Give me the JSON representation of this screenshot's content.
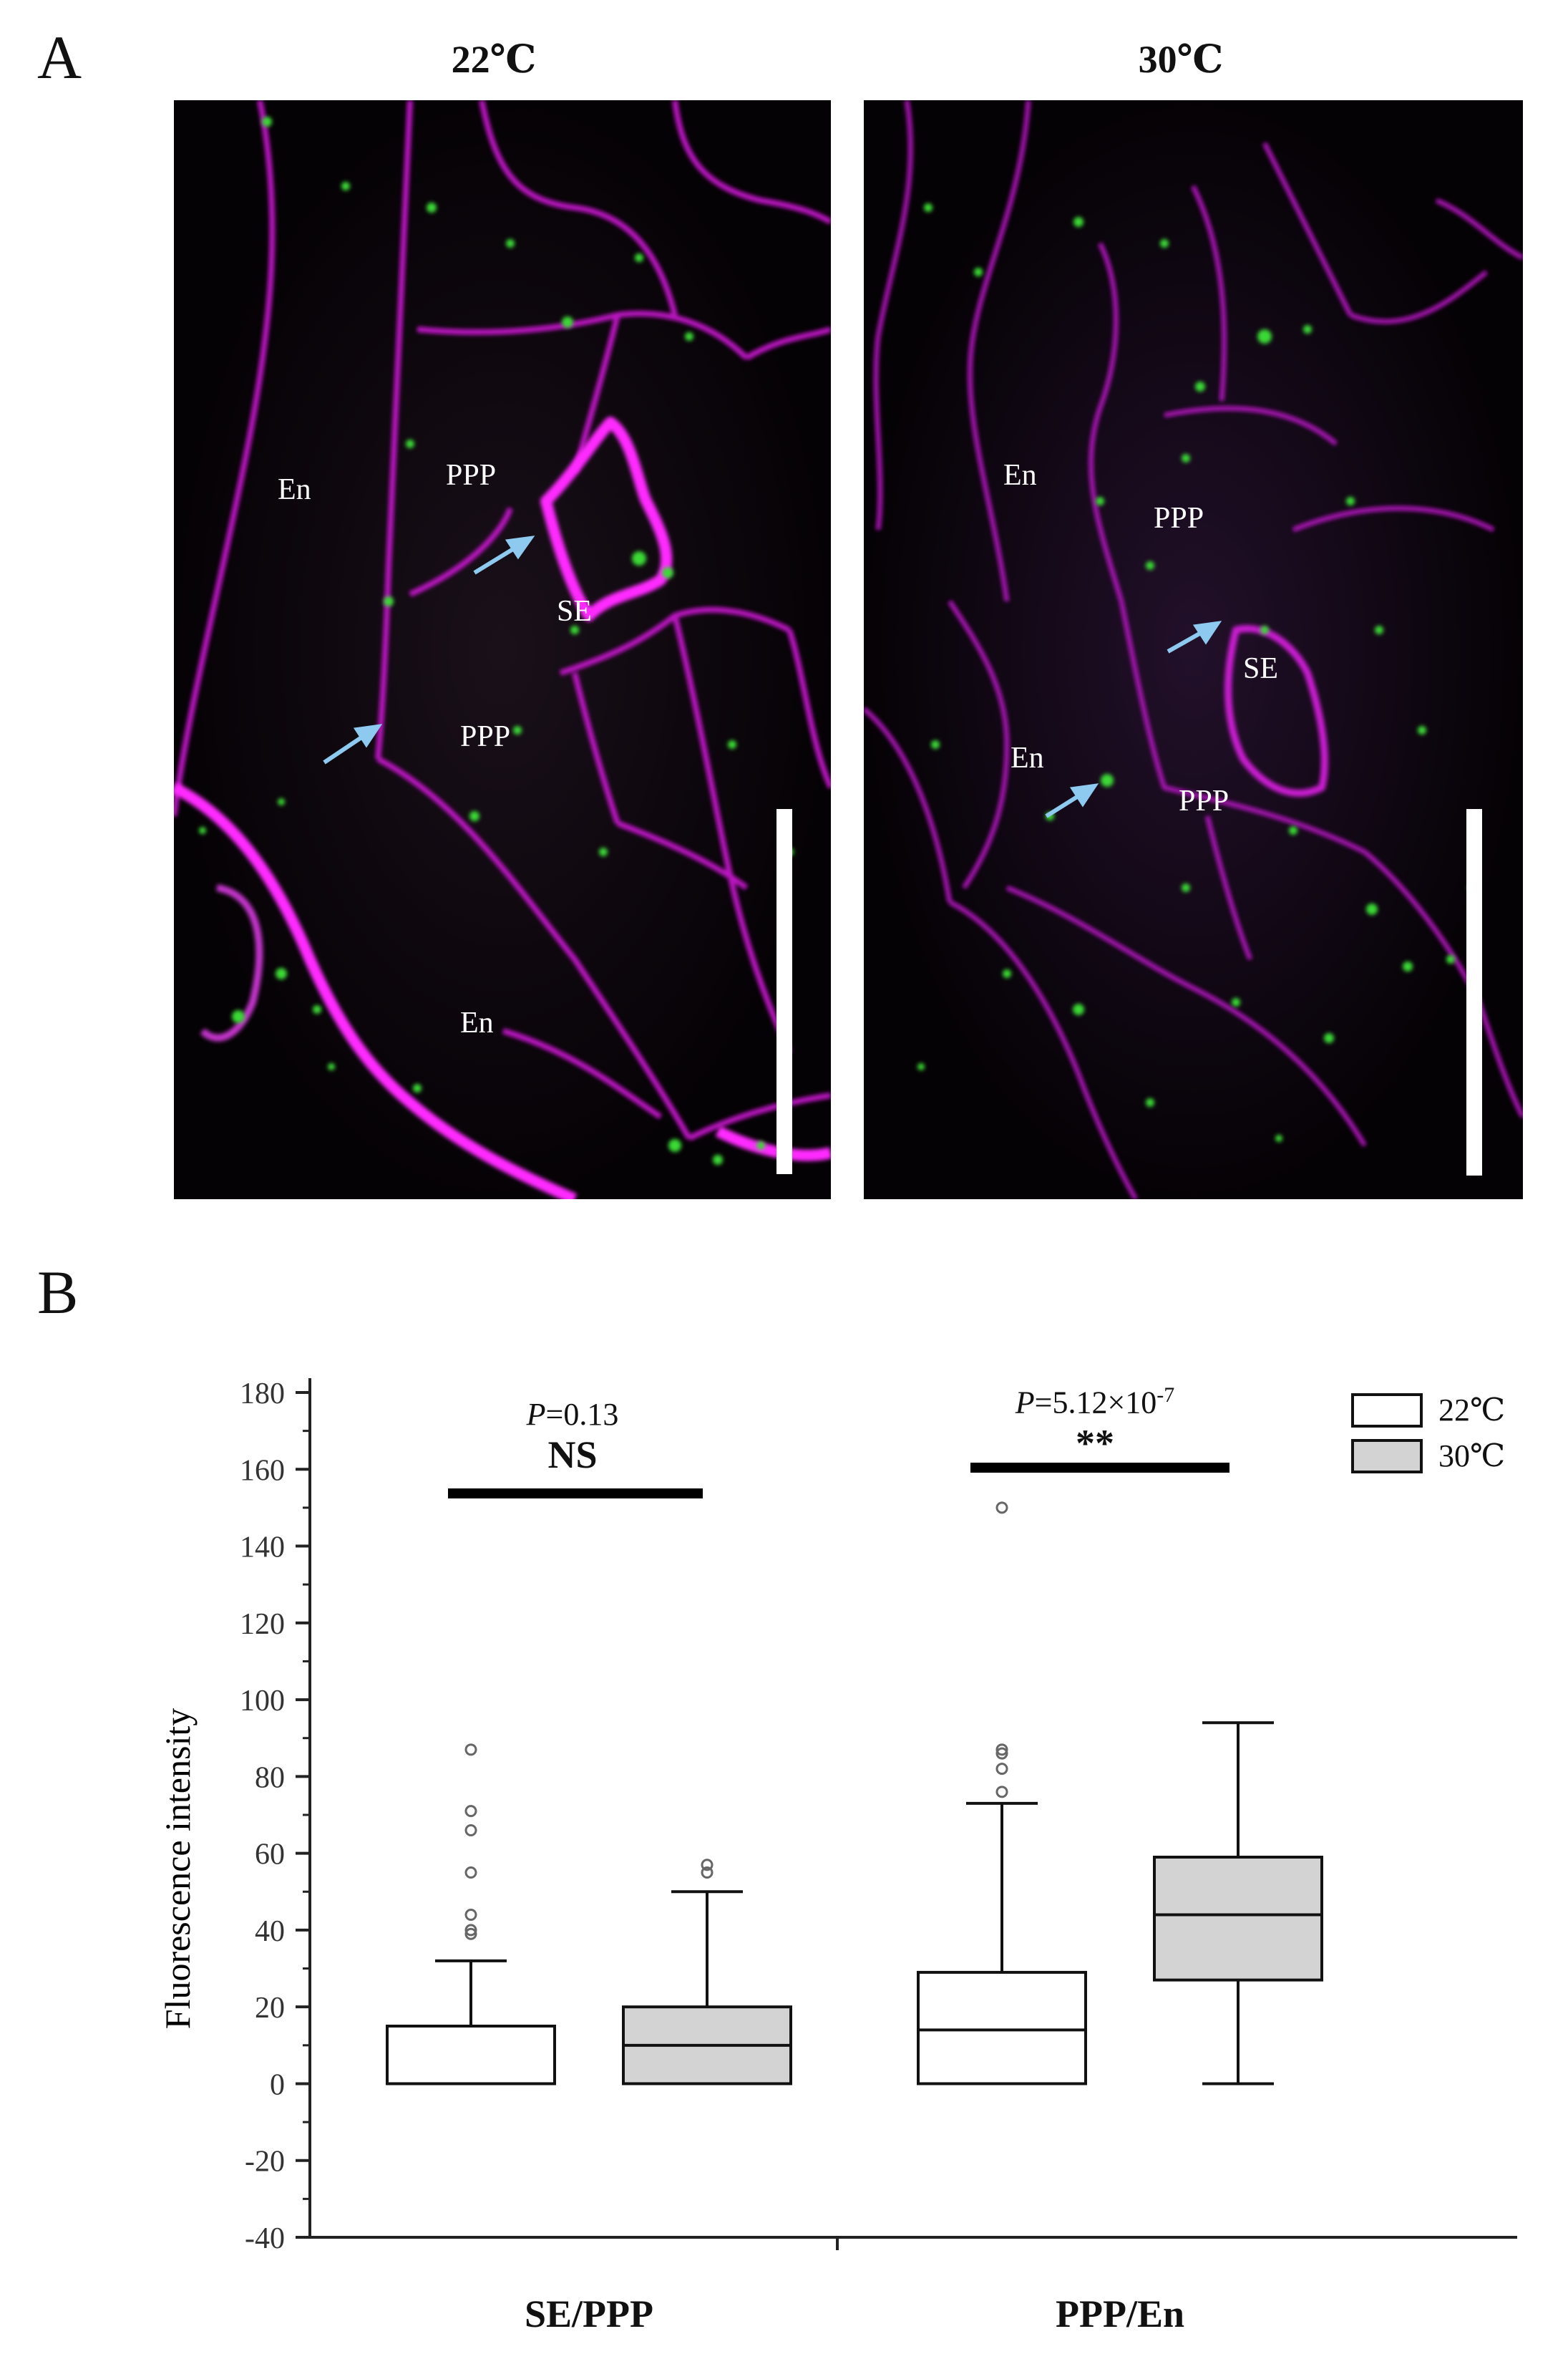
{
  "panel_a": {
    "letter": "A",
    "images": [
      {
        "title": "22℃",
        "labels": [
          {
            "text": "En"
          },
          {
            "text": "PPP"
          },
          {
            "text": "SE"
          },
          {
            "text": "PPP"
          },
          {
            "text": "En"
          }
        ]
      },
      {
        "title": "30℃",
        "labels": [
          {
            "text": "En"
          },
          {
            "text": "PPP"
          },
          {
            "text": "SE"
          },
          {
            "text": "En"
          },
          {
            "text": "PPP"
          }
        ]
      }
    ],
    "colors": {
      "membrane": "#d01ad6",
      "signal": "#3dd63a",
      "arrow": "#8ec9ef",
      "background": "#050205"
    }
  },
  "panel_b": {
    "letter": "B"
  },
  "chart_data": {
    "type": "box",
    "ylabel": "Fluorescence intensity",
    "ylim": [
      -40,
      180
    ],
    "yticks": [
      -40,
      -20,
      0,
      20,
      40,
      60,
      80,
      100,
      120,
      140,
      160,
      180
    ],
    "ytick_labels": [
      "-40",
      "-20",
      "0",
      "20",
      "40",
      "60",
      "80",
      "100",
      "120",
      "140",
      "160",
      "180"
    ],
    "categories": [
      "SE/PPP",
      "PPP/En"
    ],
    "series": [
      {
        "name": "22℃",
        "fill": "#ffffff",
        "boxes": [
          {
            "min": 0,
            "q1": 0,
            "median": 0,
            "q3": 15,
            "max": 32,
            "outliers": [
              39,
              40,
              44,
              55,
              66,
              71,
              87
            ]
          },
          {
            "min": 0,
            "q1": 0,
            "median": 14,
            "q3": 29,
            "max": 73,
            "outliers": [
              76,
              82,
              86,
              87,
              150
            ]
          }
        ]
      },
      {
        "name": "30℃",
        "fill": "#d3d3d3",
        "boxes": [
          {
            "min": 0,
            "q1": 0,
            "median": 10,
            "q3": 20,
            "max": 50,
            "outliers": [
              55,
              57
            ]
          },
          {
            "min": 0,
            "q1": 27,
            "median": 44,
            "q3": 59,
            "max": 94,
            "outliers": []
          }
        ]
      }
    ],
    "annotations": [
      {
        "p_label": "P",
        "p_value": "=0.13",
        "significance": "NS"
      },
      {
        "p_label": "P",
        "p_value": "=5.12×10",
        "p_exponent": "-7",
        "significance": "**"
      }
    ],
    "legend": {
      "position": "top-right"
    }
  }
}
